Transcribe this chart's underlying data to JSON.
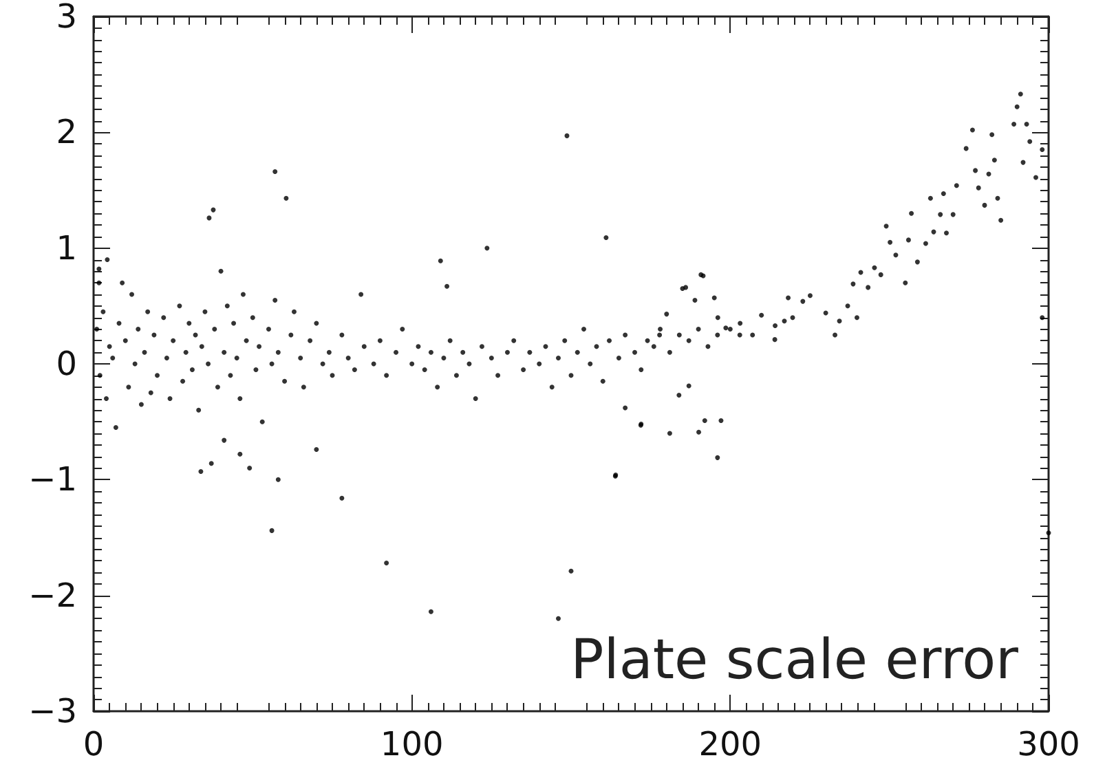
{
  "chart_data": {
    "type": "scatter",
    "xlim": [
      0,
      300
    ],
    "ylim": [
      -3,
      3
    ],
    "xticks": [
      0,
      100,
      200,
      300
    ],
    "yticks": [
      -3,
      -2,
      -1,
      0,
      1,
      2,
      3
    ],
    "grid": false,
    "marker": "circle",
    "annotations": [
      "Plate scale error"
    ],
    "series": [
      {
        "color": "#000000",
        "x": [
          1,
          2,
          3,
          4,
          5,
          6,
          7,
          8,
          9,
          10,
          11,
          12,
          13,
          14,
          15,
          16,
          17,
          18,
          19,
          20,
          22,
          23,
          24,
          25,
          27,
          28,
          29,
          30,
          31,
          32,
          33,
          34,
          35,
          36,
          38,
          39,
          40,
          41,
          42,
          43,
          44,
          45,
          46,
          47,
          48,
          50,
          51,
          52,
          53,
          55,
          56,
          57,
          58,
          60,
          62,
          63,
          65,
          66,
          68,
          70,
          72,
          74,
          75,
          78,
          80,
          82,
          84,
          85,
          88,
          90,
          92,
          95,
          97,
          100,
          102,
          104,
          106,
          108,
          110,
          112,
          114,
          116,
          118,
          120,
          122,
          125,
          127,
          130,
          132,
          135,
          137,
          140,
          142,
          144,
          146,
          148,
          150,
          152,
          154,
          156,
          158,
          160,
          162,
          165,
          167,
          170,
          172,
          174,
          176,
          178,
          181,
          184,
          187,
          190,
          193,
          196,
          200,
          203,
          1.7,
          1.7,
          4.3,
          36.3,
          37.6,
          57,
          60.5,
          148.7,
          109,
          111,
          123.6,
          161,
          185,
          191.5,
          33.7,
          37,
          56,
          58,
          49,
          78,
          92,
          106,
          146,
          150,
          164,
          196,
          300,
          298,
          46,
          41,
          70,
          172,
          192,
          291.2,
          290.1,
          289.1,
          293.1,
          294.1,
          298,
          292,
          296,
          276.1,
          274.1,
          282.2,
          283,
          277,
          281.2,
          278,
          279.9,
          284,
          285,
          271.1,
          267,
          262.9,
          266,
          270,
          263.9,
          267.9,
          256.9,
          249,
          250.2,
          256,
          261.4,
          258.8,
          252,
          255,
          247.3,
          245.3,
          243.3,
          241,
          238.6,
          236.9,
          239.8,
          232.9,
          234.3,
          230,
          225.1,
          222.8,
          218.2,
          219.6,
          217,
          214.1,
          214,
          209.8,
          207,
          203.1,
          198.6,
          196.1,
          195,
          190.8,
          186,
          188.9,
          180,
          177.8,
          183.9,
          187,
          190.1,
          181,
          197.1,
          171.9,
          167,
          163.9
        ],
        "values": [
          0.3,
          -0.1,
          0.45,
          -0.3,
          0.15,
          0.05,
          -0.55,
          0.35,
          0.7,
          0.2,
          -0.2,
          0.6,
          0.0,
          0.3,
          -0.35,
          0.1,
          0.45,
          -0.25,
          0.25,
          -0.1,
          0.4,
          0.05,
          -0.3,
          0.2,
          0.5,
          -0.15,
          0.1,
          0.35,
          -0.05,
          0.25,
          -0.4,
          0.15,
          0.45,
          0.0,
          0.3,
          -0.2,
          0.8,
          0.1,
          0.5,
          -0.1,
          0.35,
          0.05,
          -0.3,
          0.6,
          0.2,
          0.4,
          -0.05,
          0.15,
          -0.5,
          0.3,
          0.0,
          0.55,
          0.1,
          -0.15,
          0.25,
          0.45,
          0.05,
          -0.2,
          0.2,
          0.35,
          0.0,
          0.1,
          -0.1,
          0.25,
          0.05,
          -0.05,
          0.6,
          0.15,
          0.0,
          0.2,
          -0.1,
          0.1,
          0.3,
          0.0,
          0.15,
          -0.05,
          0.1,
          -0.2,
          0.05,
          0.2,
          -0.1,
          0.1,
          0.0,
          -0.3,
          0.15,
          0.05,
          -0.1,
          0.1,
          0.2,
          -0.05,
          0.1,
          0.0,
          0.15,
          -0.2,
          0.05,
          0.2,
          -0.1,
          0.1,
          0.3,
          0.0,
          0.15,
          -0.15,
          0.2,
          0.05,
          0.25,
          0.1,
          -0.05,
          0.2,
          0.15,
          0.3,
          0.1,
          0.25,
          0.2,
          0.3,
          0.15,
          0.25,
          0.3,
          0.25,
          0.82,
          0.7,
          0.9,
          1.26,
          1.33,
          1.66,
          1.43,
          1.97,
          0.89,
          0.67,
          1.0,
          1.09,
          0.65,
          0.76,
          -0.93,
          -0.86,
          -1.44,
          -1.0,
          -0.9,
          -1.16,
          -1.72,
          -2.14,
          -2.2,
          -1.79,
          -0.96,
          -0.81,
          -1.46,
          0.4,
          -0.78,
          -0.66,
          -0.74,
          -0.52,
          -0.49,
          2.33,
          2.22,
          2.07,
          2.07,
          1.92,
          1.85,
          1.74,
          1.61,
          2.02,
          1.86,
          1.98,
          1.76,
          1.67,
          1.64,
          1.52,
          1.37,
          1.43,
          1.24,
          1.54,
          1.47,
          1.43,
          1.29,
          1.29,
          1.14,
          1.13,
          1.3,
          1.19,
          1.05,
          1.07,
          1.04,
          0.88,
          0.94,
          0.7,
          0.77,
          0.83,
          0.66,
          0.79,
          0.69,
          0.5,
          0.4,
          0.25,
          0.37,
          0.44,
          0.59,
          0.54,
          0.57,
          0.4,
          0.37,
          0.33,
          0.21,
          0.42,
          0.25,
          0.35,
          0.31,
          0.4,
          0.57,
          0.77,
          0.66,
          0.55,
          0.43,
          0.25,
          -0.27,
          -0.19,
          -0.59,
          -0.6,
          -0.49,
          -0.53,
          -0.38,
          -0.97
        ]
      }
    ]
  }
}
